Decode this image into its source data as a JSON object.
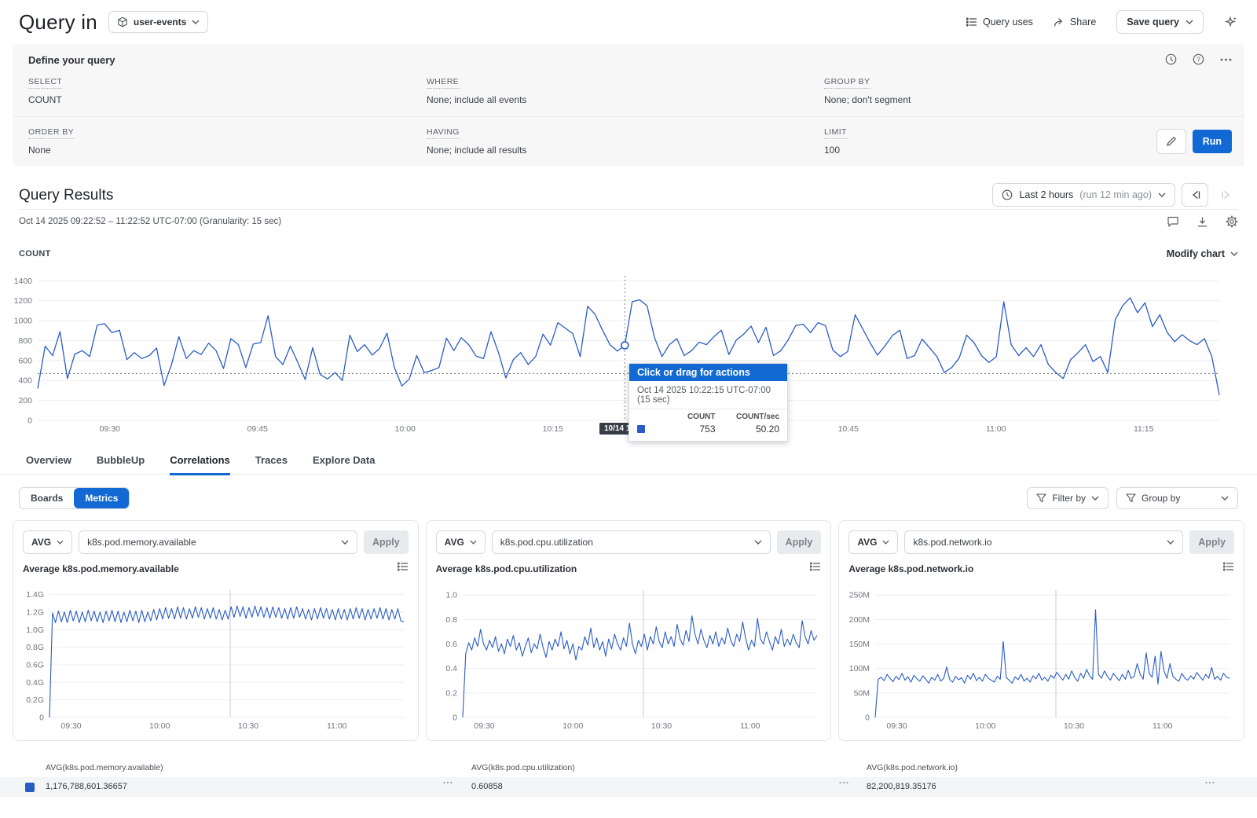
{
  "header": {
    "title": "Query in",
    "dataset": "user-events",
    "query_uses": "Query uses",
    "share": "Share",
    "save_query": "Save query"
  },
  "builder": {
    "title": "Define your query",
    "fields": [
      {
        "label": "SELECT",
        "value": "COUNT"
      },
      {
        "label": "WHERE",
        "value": "None; include all events"
      },
      {
        "label": "GROUP BY",
        "value": "None; don't segment"
      },
      {
        "label": "ORDER BY",
        "value": "None"
      },
      {
        "label": "HAVING",
        "value": "None; include all results"
      },
      {
        "label": "LIMIT",
        "value": "100"
      }
    ],
    "run_label": "Run"
  },
  "results": {
    "title": "Query Results",
    "time_summary": "Oct 14 2025 09:22:52 – 11:22:52 UTC-07:00 (Granularity: 15 sec)",
    "time_range": "Last 2 hours",
    "time_range_note": "(run 12 min ago)",
    "series_label": "COUNT",
    "modify_chart": "Modify chart",
    "crosshair_label": "10/14 10:22:15"
  },
  "tooltip": {
    "header": "Click or drag for actions",
    "timestamp": "Oct 14 2025 10:22:15 UTC-07:00 (15 sec)",
    "col1": "COUNT",
    "col2": "COUNT/sec",
    "val1": "753",
    "val2": "50.20"
  },
  "tabs": [
    "Overview",
    "BubbleUp",
    "Correlations",
    "Traces",
    "Explore Data"
  ],
  "active_tab": "Correlations",
  "toggle": {
    "boards": "Boards",
    "metrics": "Metrics"
  },
  "filters": {
    "filter_by": "Filter by",
    "group_by": "Group by"
  },
  "metric_cards": [
    {
      "agg": "AVG",
      "metric": "k8s.pod.memory.available",
      "apply": "Apply",
      "title": "Average k8s.pod.memory.available"
    },
    {
      "agg": "AVG",
      "metric": "k8s.pod.cpu.utilization",
      "apply": "Apply",
      "title": "Average k8s.pod.cpu.utilization"
    },
    {
      "agg": "AVG",
      "metric": "k8s.pod.network.io",
      "apply": "Apply",
      "title": "Average k8s.pod.network.io"
    }
  ],
  "summary": [
    {
      "label": "AVG(k8s.pod.memory.available)",
      "value": "1,176,788,601.36657"
    },
    {
      "label": "AVG(k8s.pod.cpu.utilization)",
      "value": "0.60858"
    },
    {
      "label": "AVG(k8s.pod.network.io)",
      "value": "82,200,819.35176"
    }
  ],
  "colors": {
    "accent": "#1269d3",
    "line": "#2a5cc5",
    "swatch": "#2a5cc5",
    "icon": "#4b5158",
    "icon_disabled": "#c6cacf"
  },
  "chart_data": [
    {
      "type": "line",
      "title": "COUNT",
      "ylabel": "COUNT",
      "ylim": [
        0,
        1450
      ],
      "pad": [
        48,
        48,
        11,
        17
      ],
      "stroke": 1.3,
      "y_ticks": [
        [
          1400,
          "1400"
        ],
        [
          1200,
          "1200"
        ],
        [
          1000,
          "1000"
        ],
        [
          800,
          "800"
        ],
        [
          600,
          "600"
        ],
        [
          400,
          "400"
        ],
        [
          200,
          "200"
        ],
        [
          0,
          "0"
        ]
      ],
      "x_ticks": [
        [
          0.061,
          "09:30"
        ],
        [
          0.186,
          "09:45"
        ],
        [
          0.311,
          "10:00"
        ],
        [
          0.436,
          "10:15"
        ],
        [
          0.561,
          "10:30"
        ],
        [
          0.686,
          "10:45"
        ],
        [
          0.811,
          "11:00"
        ],
        [
          0.936,
          "11:15"
        ]
      ],
      "avg_line": 470,
      "crosshair": {
        "f": 0.4969,
        "marker": 753
      },
      "values": [
        320,
        745,
        650,
        890,
        420,
        665,
        700,
        640,
        955,
        970,
        880,
        905,
        610,
        680,
        620,
        650,
        725,
        350,
        560,
        840,
        620,
        700,
        660,
        775,
        700,
        520,
        820,
        760,
        530,
        765,
        780,
        1050,
        640,
        560,
        745,
        580,
        410,
        730,
        460,
        415,
        480,
        400,
        855,
        690,
        760,
        655,
        720,
        875,
        530,
        345,
        415,
        650,
        480,
        500,
        530,
        825,
        700,
        830,
        760,
        645,
        620,
        890,
        680,
        425,
        610,
        680,
        560,
        640,
        865,
        755,
        980,
        925,
        870,
        640,
        1145,
        1065,
        905,
        760,
        695,
        753,
        1190,
        1210,
        1150,
        830,
        640,
        760,
        820,
        650,
        700,
        785,
        760,
        840,
        905,
        660,
        805,
        865,
        945,
        780,
        935,
        650,
        700,
        810,
        950,
        965,
        880,
        980,
        950,
        705,
        640,
        690,
        1060,
        920,
        780,
        655,
        745,
        850,
        905,
        620,
        650,
        815,
        730,
        640,
        480,
        530,
        625,
        855,
        780,
        650,
        580,
        640,
        1190,
        760,
        650,
        730,
        640,
        760,
        560,
        480,
        420,
        610,
        680,
        760,
        590,
        640,
        480,
        1010,
        1150,
        1230,
        1080,
        1180,
        940,
        1060,
        880,
        790,
        860,
        800,
        760,
        820,
        640,
        255
      ]
    },
    {
      "type": "line",
      "title": "Average k8s.pod.memory.available",
      "ylim": [
        0,
        1.45
      ],
      "pad": [
        40,
        12,
        14,
        26
      ],
      "stroke": 1.1,
      "y_ticks": [
        [
          1.4,
          "1.4G"
        ],
        [
          1.2,
          "1.2G"
        ],
        [
          1.0,
          "1.0G"
        ],
        [
          0.8,
          "0.8G"
        ],
        [
          0.6,
          "0.6G"
        ],
        [
          0.4,
          "0.4G"
        ],
        [
          0.2,
          "0.2G"
        ],
        [
          0,
          "0"
        ]
      ],
      "x_ticks": [
        [
          0.061,
          "09:30"
        ],
        [
          0.311,
          "10:00"
        ],
        [
          0.561,
          "10:30"
        ],
        [
          0.811,
          "11:00"
        ]
      ],
      "crosshair": {
        "f": 0.51,
        "solid": true
      },
      "values": [
        0,
        1.19,
        1.08,
        1.21,
        1.09,
        1.2,
        1.08,
        1.22,
        1.1,
        1.21,
        1.08,
        1.2,
        1.09,
        1.22,
        1.1,
        1.21,
        1.09,
        1.2,
        1.08,
        1.21,
        1.1,
        1.22,
        1.09,
        1.21,
        1.08,
        1.2,
        1.09,
        1.22,
        1.1,
        1.21,
        1.08,
        1.22,
        1.09,
        1.2,
        1.1,
        1.23,
        1.11,
        1.24,
        1.12,
        1.25,
        1.13,
        1.24,
        1.12,
        1.26,
        1.13,
        1.25,
        1.12,
        1.24,
        1.13,
        1.26,
        1.14,
        1.25,
        1.12,
        1.24,
        1.13,
        1.25,
        1.12,
        1.23,
        1.11,
        1.22,
        1.12,
        1.26,
        1.14,
        1.27,
        1.15,
        1.26,
        1.13,
        1.25,
        1.14,
        1.27,
        1.15,
        1.26,
        1.14,
        1.25,
        1.13,
        1.26,
        1.14,
        1.25,
        1.13,
        1.24,
        1.12,
        1.25,
        1.13,
        1.26,
        1.14,
        1.24,
        1.12,
        1.23,
        1.11,
        1.24,
        1.12,
        1.25,
        1.13,
        1.24,
        1.12,
        1.23,
        1.11,
        1.24,
        1.12,
        1.23,
        1.11,
        1.24,
        1.12,
        1.25,
        1.13,
        1.24,
        1.11,
        1.23,
        1.12,
        1.24,
        1.13,
        1.25,
        1.12,
        1.24,
        1.11,
        1.23,
        1.12,
        1.24,
        1.1,
        1.09
      ]
    },
    {
      "type": "line",
      "title": "Average k8s.pod.cpu.utilization",
      "ylim": [
        0,
        1.04
      ],
      "pad": [
        40,
        12,
        14,
        26
      ],
      "stroke": 1.1,
      "y_ticks": [
        [
          1.0,
          "1.0"
        ],
        [
          0.8,
          "0.8"
        ],
        [
          0.6,
          "0.6"
        ],
        [
          0.4,
          "0.4"
        ],
        [
          0.2,
          "0.2"
        ],
        [
          0,
          "0"
        ]
      ],
      "x_ticks": [
        [
          0.061,
          "09:30"
        ],
        [
          0.311,
          "10:00"
        ],
        [
          0.561,
          "10:30"
        ],
        [
          0.811,
          "11:00"
        ]
      ],
      "crosshair": {
        "f": 0.51,
        "solid": true
      },
      "values": [
        0,
        0.52,
        0.61,
        0.55,
        0.65,
        0.58,
        0.72,
        0.6,
        0.55,
        0.63,
        0.57,
        0.66,
        0.54,
        0.6,
        0.52,
        0.64,
        0.58,
        0.67,
        0.55,
        0.61,
        0.5,
        0.58,
        0.65,
        0.53,
        0.6,
        0.56,
        0.68,
        0.57,
        0.49,
        0.62,
        0.55,
        0.64,
        0.58,
        0.7,
        0.56,
        0.63,
        0.52,
        0.6,
        0.47,
        0.58,
        0.55,
        0.66,
        0.59,
        0.73,
        0.57,
        0.65,
        0.55,
        0.62,
        0.5,
        0.64,
        0.56,
        0.68,
        0.6,
        0.55,
        0.65,
        0.58,
        0.77,
        0.6,
        0.52,
        0.63,
        0.58,
        0.68,
        0.55,
        0.66,
        0.6,
        0.74,
        0.62,
        0.57,
        0.7,
        0.6,
        0.66,
        0.58,
        0.76,
        0.64,
        0.59,
        0.71,
        0.62,
        0.83,
        0.68,
        0.6,
        0.72,
        0.63,
        0.57,
        0.67,
        0.6,
        0.7,
        0.58,
        0.65,
        0.6,
        0.73,
        0.63,
        0.58,
        0.68,
        0.62,
        0.78,
        0.65,
        0.55,
        0.63,
        0.58,
        0.81,
        0.64,
        0.6,
        0.7,
        0.62,
        0.55,
        0.66,
        0.6,
        0.72,
        0.58,
        0.64,
        0.59,
        0.68,
        0.61,
        0.57,
        0.79,
        0.66,
        0.6,
        0.71,
        0.63,
        0.67
      ]
    },
    {
      "type": "line",
      "title": "Average k8s.pod.network.io",
      "ylim": [
        0,
        260
      ],
      "pad": [
        40,
        12,
        14,
        26
      ],
      "stroke": 1.1,
      "y_ticks": [
        [
          250,
          "250M"
        ],
        [
          200,
          "200M"
        ],
        [
          150,
          "150M"
        ],
        [
          100,
          "100M"
        ],
        [
          50,
          "50M"
        ],
        [
          0,
          "0"
        ]
      ],
      "x_ticks": [
        [
          0.061,
          "09:30"
        ],
        [
          0.311,
          "10:00"
        ],
        [
          0.561,
          "10:30"
        ],
        [
          0.811,
          "11:00"
        ]
      ],
      "crosshair": {
        "f": 0.51,
        "solid": true
      },
      "values": [
        0,
        78,
        82,
        75,
        88,
        80,
        73,
        84,
        77,
        90,
        76,
        83,
        72,
        86,
        79,
        74,
        85,
        78,
        70,
        82,
        76,
        88,
        74,
        80,
        103,
        78,
        72,
        84,
        77,
        81,
        70,
        86,
        78,
        90,
        75,
        82,
        74,
        88,
        80,
        76,
        72,
        84,
        78,
        155,
        82,
        76,
        70,
        83,
        77,
        88,
        74,
        80,
        72,
        85,
        79,
        90,
        76,
        82,
        74,
        86,
        80,
        92,
        84,
        76,
        88,
        78,
        95,
        82,
        74,
        90,
        80,
        98,
        85,
        78,
        220,
        88,
        80,
        95,
        84,
        76,
        90,
        82,
        75,
        88,
        78,
        96,
        80,
        84,
        110,
        88,
        78,
        132,
        90,
        82,
        125,
        68,
        135,
        95,
        80,
        110,
        84,
        78,
        74,
        90,
        80,
        76,
        85,
        78,
        92,
        84,
        76,
        88,
        80,
        102,
        78,
        84,
        76,
        90,
        82,
        80
      ]
    }
  ]
}
